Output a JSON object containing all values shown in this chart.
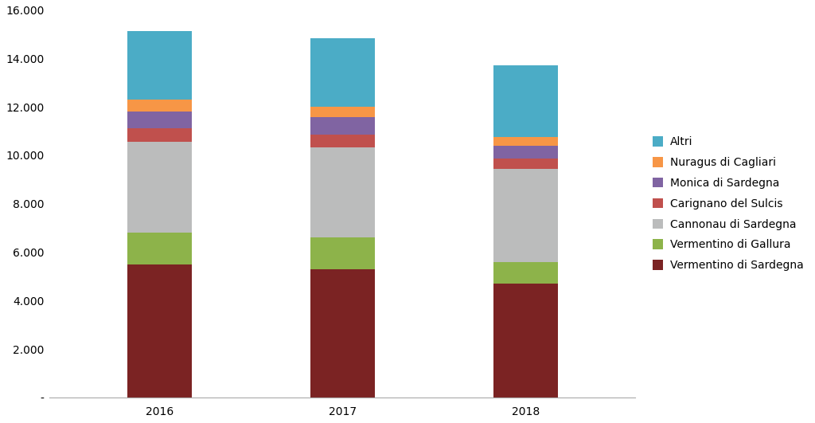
{
  "years": [
    "2016",
    "2017",
    "2018"
  ],
  "series": [
    {
      "name": "Vermentino di Sardegna",
      "values": [
        5475,
        5286,
        4701
      ],
      "color": "#7B2323"
    },
    {
      "name": "Vermentino di Gallura",
      "values": [
        1320,
        1330,
        880
      ],
      "color": "#8DB34A"
    },
    {
      "name": "Cannonau di Sardegna",
      "values": [
        3750,
        3700,
        3870
      ],
      "color": "#BBBCBC"
    },
    {
      "name": "Carignano del Sulcis",
      "values": [
        560,
        550,
        430
      ],
      "color": "#C0504D"
    },
    {
      "name": "Monica di Sardegna",
      "values": [
        700,
        700,
        500
      ],
      "color": "#8064A2"
    },
    {
      "name": "Nuragus di Cagliari",
      "values": [
        480,
        430,
        380
      ],
      "color": "#F79646"
    },
    {
      "name": "Altri",
      "values": [
        2830,
        2820,
        2960
      ],
      "color": "#4BACC6"
    }
  ],
  "ylim": [
    0,
    16000
  ],
  "yticks": [
    0,
    2000,
    4000,
    6000,
    8000,
    10000,
    12000,
    14000,
    16000
  ],
  "ytick_labels": [
    "-",
    "2.000",
    "4.000",
    "6.000",
    "8.000",
    "10.000",
    "12.000",
    "14.000",
    "16.000"
  ],
  "background_color": "#FFFFFF",
  "legend_fontsize": 10,
  "tick_fontsize": 10,
  "bar_width": 0.35,
  "figsize": [
    10.24,
    5.31
  ],
  "dpi": 100
}
